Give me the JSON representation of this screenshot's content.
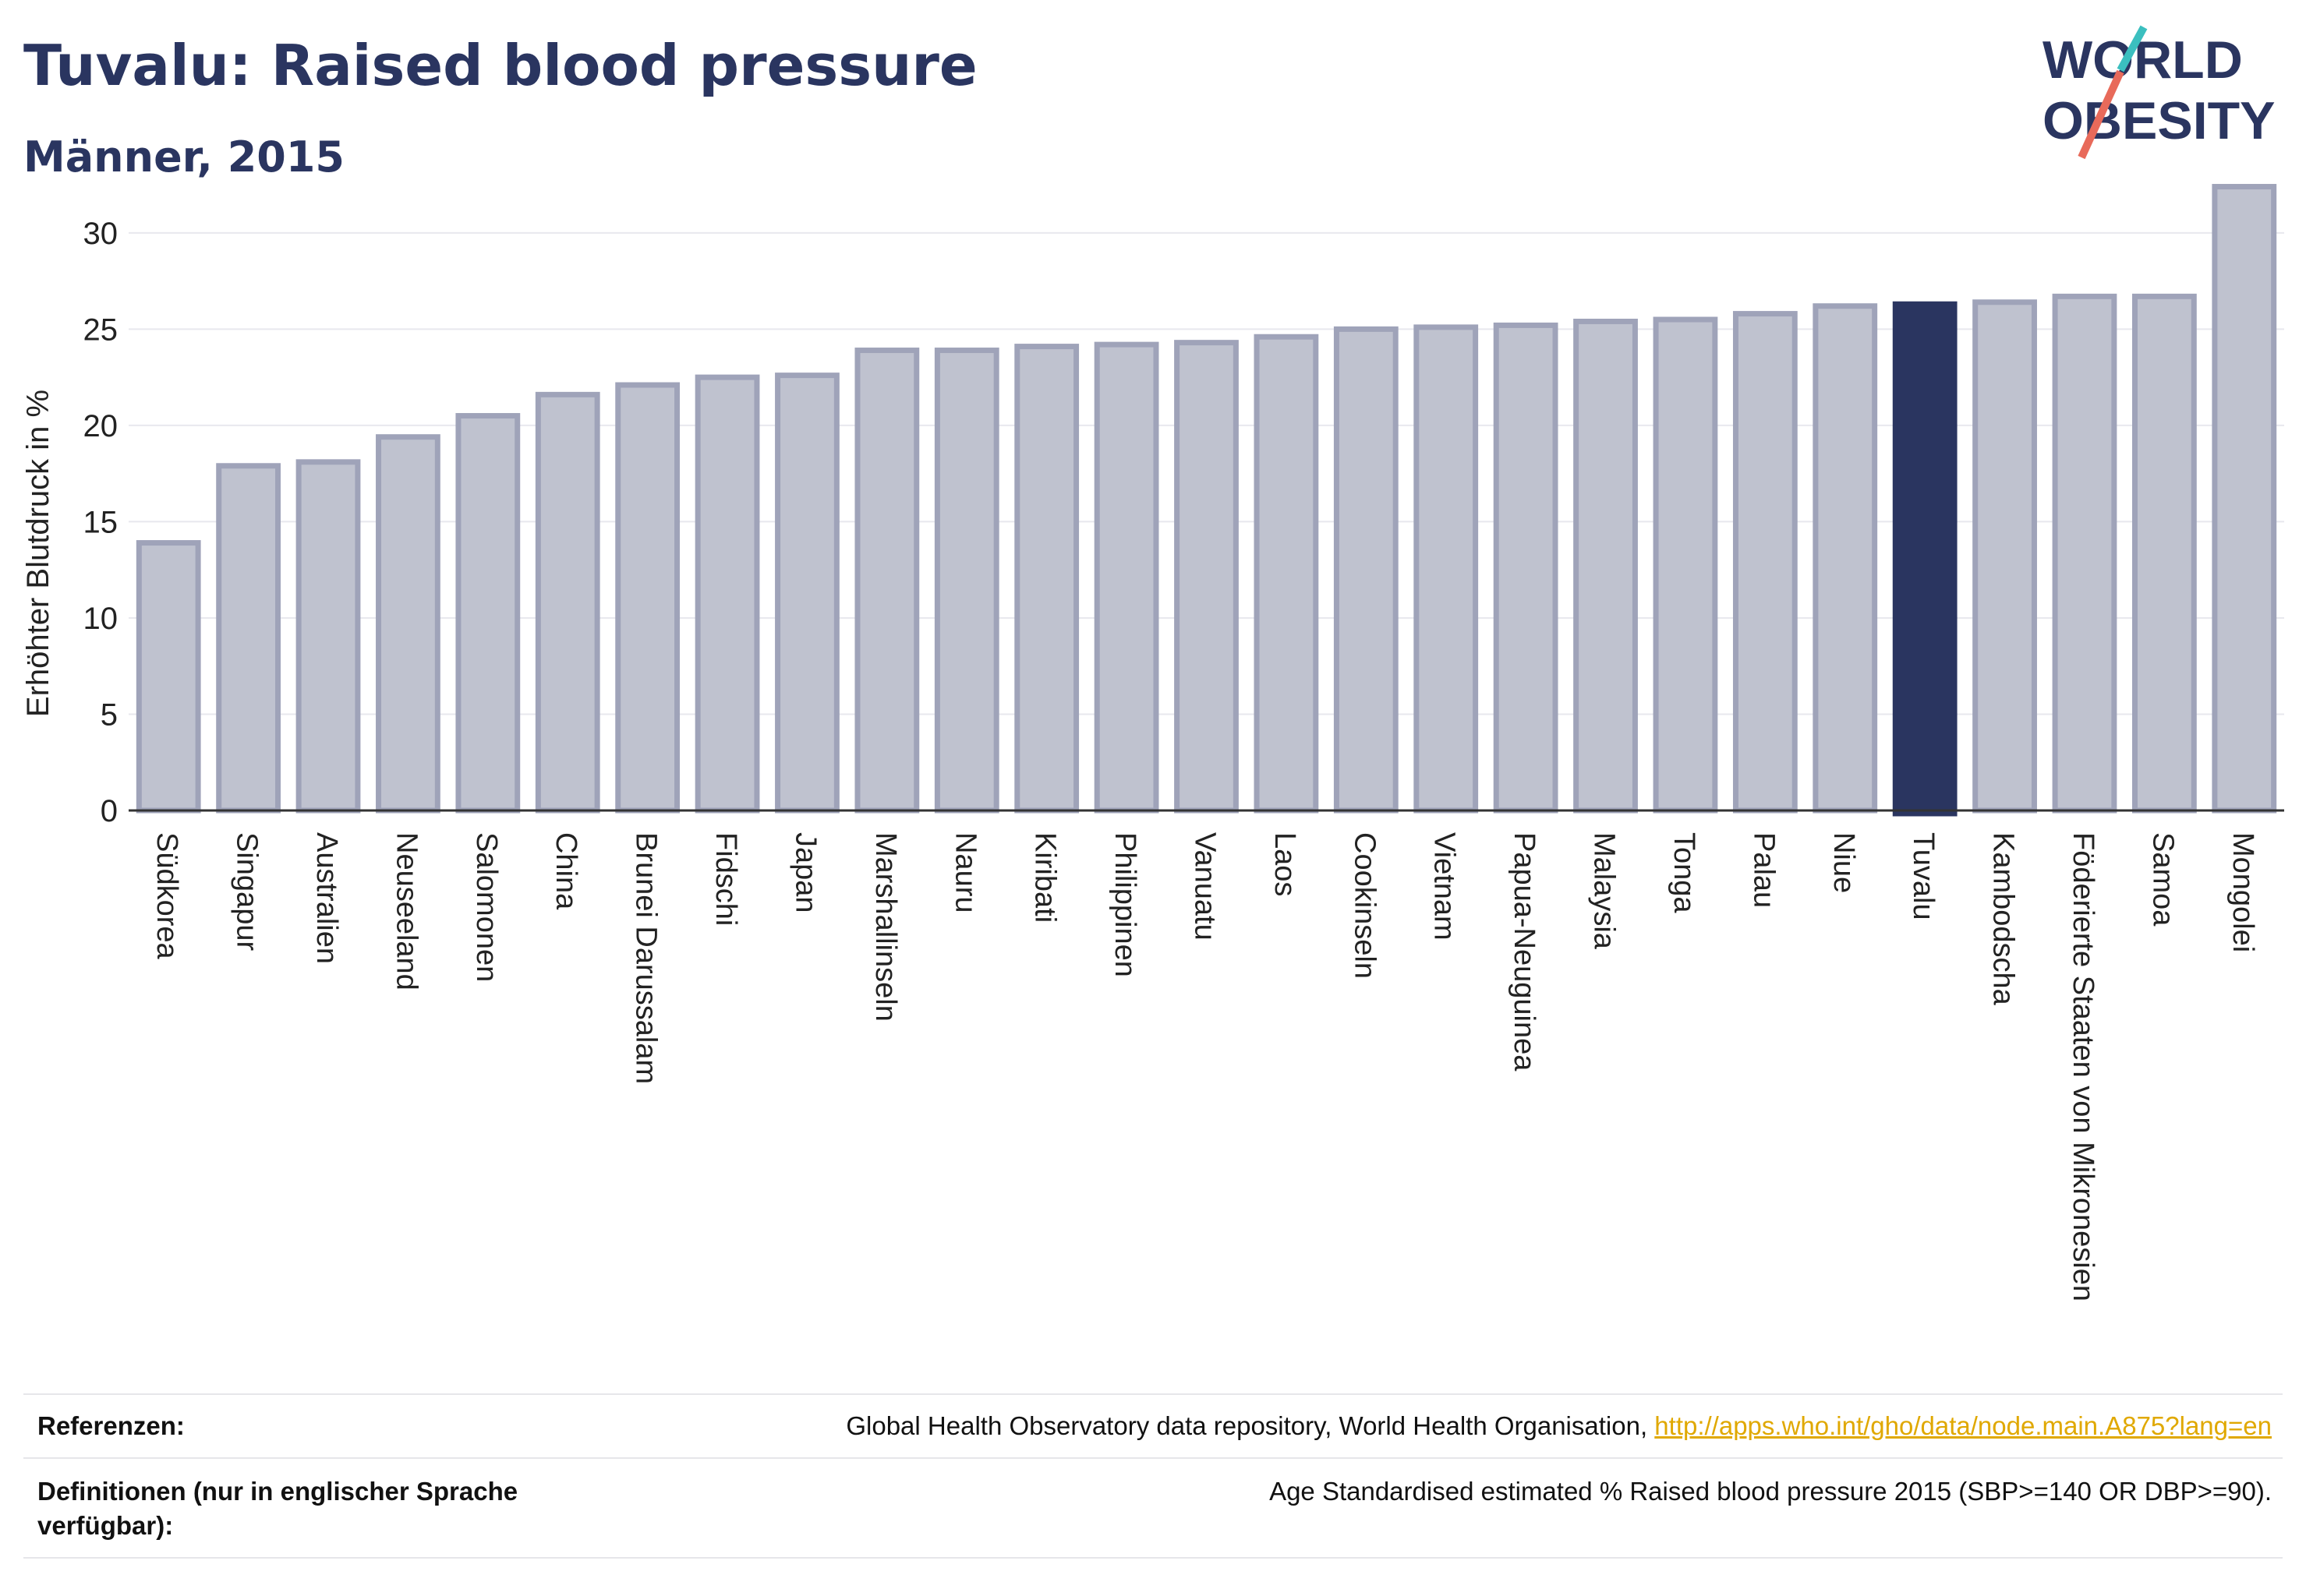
{
  "header": {
    "title": "Tuvalu: Raised blood pressure",
    "subtitle": "Männer, 2015"
  },
  "logo": {
    "line1": "WORLD",
    "line2": "OBESITY"
  },
  "colors": {
    "highlight": "#2a3560",
    "bar_fill": "#bfc2cf",
    "bar_stroke": "#9fa3b9",
    "grid": "#e8e8ee",
    "logo_teal": "#3bbfbf",
    "logo_coral": "#e86a5a",
    "link": "#e0a800"
  },
  "chart_data": {
    "type": "bar",
    "title": "Tuvalu: Raised blood pressure",
    "subtitle": "Männer, 2015",
    "xlabel": "",
    "ylabel": "Erhöhter Blutdruck in %",
    "ylim": [
      0,
      34
    ],
    "yticks": [
      0,
      5,
      10,
      15,
      20,
      25,
      30
    ],
    "grid": true,
    "highlight": "Tuvalu",
    "categories": [
      "Südkorea",
      "Singapur",
      "Australien",
      "Neuseeland",
      "Salomonen",
      "China",
      "Brunei Darussalam",
      "Fidschi",
      "Japan",
      "Marshallinseln",
      "Nauru",
      "Kiribati",
      "Philippinen",
      "Vanuatu",
      "Laos",
      "Cookinseln",
      "Vietnam",
      "Papua-Neuguinea",
      "Malaysia",
      "Tonga",
      "Palau",
      "Niue",
      "Tuvalu",
      "Kambodscha",
      "Föderierte Staaten von Mikronesien",
      "Samoa",
      "Mongolei"
    ],
    "values": [
      13.9,
      17.9,
      18.1,
      19.4,
      20.5,
      21.6,
      22.1,
      22.5,
      22.6,
      23.9,
      23.9,
      24.1,
      24.2,
      24.3,
      24.6,
      25.0,
      25.1,
      25.2,
      25.4,
      25.5,
      25.8,
      26.2,
      26.3,
      26.4,
      26.7,
      26.7,
      32.4
    ]
  },
  "footer": {
    "references_label": "Referenzen:",
    "references_text": "Global Health Observatory data repository, World Health Organisation, ",
    "references_link": "http://apps.who.int/gho/data/node.main.A875?lang=en",
    "definitions_label": "Definitionen (nur in englischer Sprache verfügbar):",
    "definitions_text": "Age Standardised estimated % Raised blood pressure 2015 (SBP>=140 OR DBP>=90)."
  }
}
